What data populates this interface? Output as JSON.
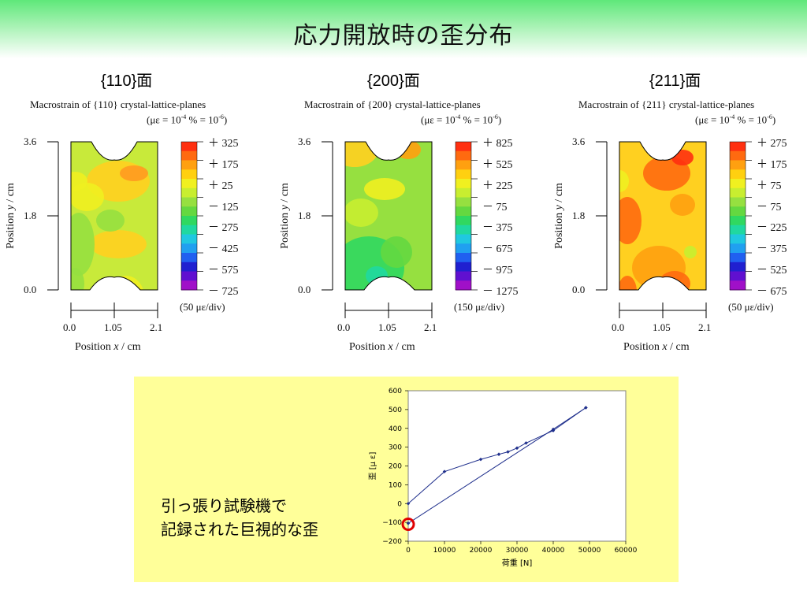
{
  "slide": {
    "title": "応力開放時の歪分布",
    "note_lines": [
      "引っ張り試験機で",
      "記録された巨視的な歪"
    ]
  },
  "maps": [
    {
      "plane": "{110}面",
      "subtitle": "Macrostrain of {110} crystal-lattice-planes",
      "unit_note": "(με = 10",
      "unit_note_full": "(με = 10-4 % = 10-6)",
      "colorbar_labels": [
        "＋ 325",
        "＋ 175",
        "＋ 25",
        "－ 125",
        "－ 275",
        "－ 425",
        "－ 575",
        "－ 725"
      ],
      "div_note": "(50 με/div)",
      "y_ticks": [
        "3.6",
        "1.8",
        "0.0"
      ],
      "x_ticks": [
        "0.0",
        "1.05",
        "2.1"
      ],
      "ylabel": "Position y / cm",
      "xlabel": "Position x / cm",
      "theme": "yellowgreen"
    },
    {
      "plane": "{200}面",
      "subtitle": "Macrostrain of {200} crystal-lattice-planes",
      "unit_note_full": "(με = 10-4 % = 10-6)",
      "colorbar_labels": [
        "＋ 825",
        "＋ 525",
        "＋ 225",
        "－ 75",
        "－ 375",
        "－ 675",
        "－ 975",
        "－ 1275"
      ],
      "div_note": "(150 με/div)",
      "y_ticks": [
        "3.6",
        "1.8",
        "0.0"
      ],
      "x_ticks": [
        "0.0",
        "1.05",
        "2.1"
      ],
      "ylabel": "Position y / cm",
      "xlabel": "Position x / cm",
      "theme": "green"
    },
    {
      "plane": "{211}面",
      "subtitle": "Macrostrain of {211} crystal-lattice-planes",
      "unit_note_full": "(με = 10-4 % = 10-6)",
      "colorbar_labels": [
        "＋ 275",
        "＋ 175",
        "＋ 75",
        "－ 75",
        "－ 225",
        "－ 375",
        "－ 525",
        "－ 675"
      ],
      "div_note": "(50 με/div)",
      "y_ticks": [
        "3.6",
        "1.8",
        "0.0"
      ],
      "x_ticks": [
        "0.0",
        "1.05",
        "2.1"
      ],
      "ylabel": "Position y / cm",
      "xlabel": "Position x / cm",
      "theme": "orange"
    }
  ],
  "chart_data": {
    "type": "line",
    "xlabel": "荷重 [N]",
    "ylabel": "歪 [μ ε]",
    "xlim": [
      0,
      60000
    ],
    "ylim": [
      -200,
      600
    ],
    "x_ticks": [
      "0",
      "10000",
      "20000",
      "30000",
      "40000",
      "50000",
      "60000"
    ],
    "y_ticks": [
      "600",
      "500",
      "400",
      "300",
      "200",
      "100",
      "0",
      "−100",
      "−200"
    ],
    "series": [
      {
        "values": [
          [
            0,
            0
          ],
          [
            10000,
            170
          ],
          [
            20000,
            235
          ],
          [
            25000,
            262
          ],
          [
            27500,
            275
          ],
          [
            30000,
            295
          ],
          [
            32500,
            322
          ],
          [
            40000,
            388
          ],
          [
            49000,
            510
          ]
        ]
      },
      {
        "values": [
          [
            0,
            -105
          ],
          [
            40000,
            395
          ],
          [
            49000,
            510
          ]
        ]
      }
    ],
    "highlight_point": [
      0,
      -110
    ],
    "colors": {
      "line": "#1f2f8c",
      "marker": "#1f2f8c",
      "highlight": "#e00000",
      "background": "#ffff99"
    }
  }
}
